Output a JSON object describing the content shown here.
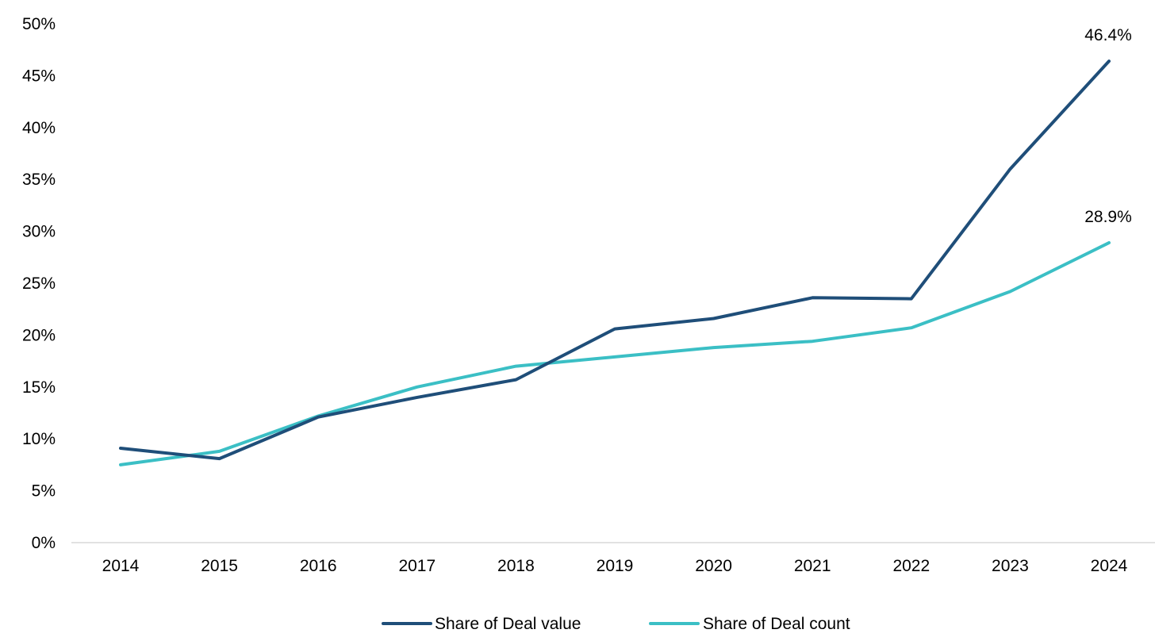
{
  "chart_data": {
    "type": "line",
    "title": "",
    "xlabel": "",
    "ylabel": "",
    "x": [
      "2014",
      "2015",
      "2016",
      "2017",
      "2018",
      "2019",
      "2020",
      "2021",
      "2022",
      "2023",
      "2024"
    ],
    "ylim": [
      0,
      50
    ],
    "yticks": [
      0,
      5,
      10,
      15,
      20,
      25,
      30,
      35,
      40,
      45,
      50
    ],
    "ytick_labels": [
      "0%",
      "5%",
      "10%",
      "15%",
      "20%",
      "25%",
      "30%",
      "35%",
      "40%",
      "45%",
      "50%"
    ],
    "grid": false,
    "legend_position": "bottom",
    "series": [
      {
        "name": "Share of Deal value",
        "color": "#1f4e79",
        "values": [
          9.1,
          8.1,
          12.1,
          14.0,
          15.7,
          20.6,
          21.6,
          23.6,
          23.5,
          36.0,
          46.4
        ],
        "end_label": "46.4%"
      },
      {
        "name": "Share of Deal count",
        "color": "#3bbfc5",
        "values": [
          7.5,
          8.8,
          12.2,
          15.0,
          17.0,
          17.9,
          18.8,
          19.4,
          20.7,
          24.2,
          28.9
        ],
        "end_label": "28.9%"
      }
    ]
  }
}
